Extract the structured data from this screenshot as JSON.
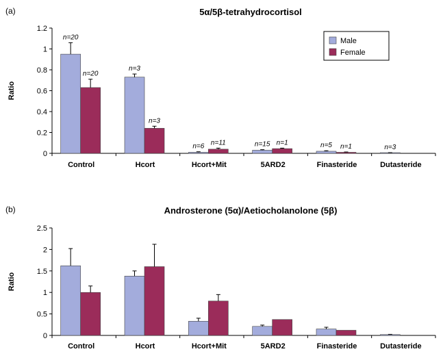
{
  "chart_data": [
    {
      "type": "bar",
      "panel_label": "(a)",
      "title": "5α/5β-tetrahydrocortisol",
      "xlabel": "",
      "ylabel": "Ratio",
      "ylim": [
        0,
        1.2
      ],
      "yticks": [
        "0",
        "0.2",
        "0.4",
        "0.6",
        "0.8",
        "1",
        "1.2"
      ],
      "categories": [
        "Control",
        "Hcort",
        "Hcort+Mit",
        "5ARD2",
        "Finasteride",
        "Dutasteride"
      ],
      "legend_position": "top-right",
      "series": [
        {
          "name": "Male",
          "color": "#a3acdc",
          "values": [
            0.95,
            0.73,
            0.01,
            0.03,
            0.02,
            0.005
          ],
          "errors": [
            0.11,
            0.03,
            0.005,
            0.005,
            0.005,
            0.002
          ],
          "n_labels": [
            "n=20",
            "n=3",
            "n=6",
            "n=15",
            "n=5",
            "n=3"
          ]
        },
        {
          "name": "Female",
          "color": "#9b2c5a",
          "values": [
            0.63,
            0.24,
            0.04,
            0.045,
            0.01,
            null
          ],
          "errors": [
            0.08,
            0.02,
            0.01,
            0.005,
            0.003,
            null
          ],
          "n_labels": [
            "n=20",
            "n=3",
            "n=11",
            "n=1",
            "n=1",
            ""
          ]
        }
      ]
    },
    {
      "type": "bar",
      "panel_label": "(b)",
      "title": "Androsterone (5α)/Aetiocholanolone (5β)",
      "xlabel": "",
      "ylabel": "Ratio",
      "ylim": [
        0,
        2.5
      ],
      "yticks": [
        "0",
        "0.5",
        "1",
        "1.5",
        "2",
        "2.5"
      ],
      "categories": [
        "Control",
        "Hcort",
        "Hcort+Mit",
        "5ARD2",
        "Finasteride",
        "Dutasteride"
      ],
      "series": [
        {
          "name": "Male",
          "color": "#a3acdc",
          "values": [
            1.62,
            1.38,
            0.33,
            0.21,
            0.15,
            0.02
          ],
          "errors": [
            0.4,
            0.12,
            0.07,
            0.03,
            0.04,
            0.005
          ]
        },
        {
          "name": "Female",
          "color": "#9b2c5a",
          "values": [
            1.0,
            1.6,
            0.8,
            0.37,
            0.12,
            null
          ],
          "errors": [
            0.15,
            0.52,
            0.15,
            0.0,
            0.0,
            null
          ]
        }
      ]
    }
  ]
}
